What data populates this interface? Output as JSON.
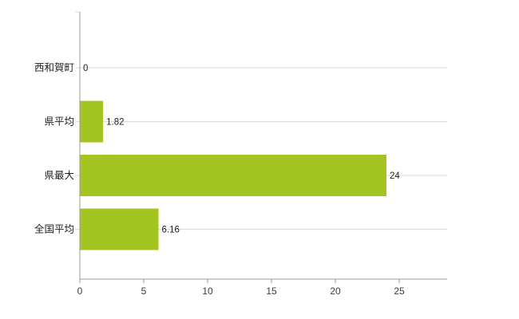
{
  "chart_data": {
    "type": "bar",
    "orientation": "horizontal",
    "title": "",
    "xlabel": "",
    "ylabel": "",
    "categories": [
      "西和賀町",
      "県平均",
      "県最大",
      "全国平均"
    ],
    "values": [
      0,
      1.82,
      24,
      6.16
    ],
    "value_labels": [
      "0",
      "1.82",
      "24",
      "6.16"
    ],
    "x_ticks": [
      0,
      5,
      10,
      15,
      20,
      25
    ],
    "x_tick_labels": [
      "0",
      "5",
      "10",
      "15",
      "20",
      "25"
    ],
    "xlim": [
      0,
      28.75
    ],
    "grid": "horizontal-category-lines",
    "legend": "none",
    "colors": {
      "bar": "#a4c422",
      "grid_line": "#d9d9d9",
      "axis_line": "#9a9a9a",
      "tick_label": "#3c3c3c",
      "category_label": "#222222",
      "value_label": "#222222",
      "background": "#ffffff"
    }
  }
}
